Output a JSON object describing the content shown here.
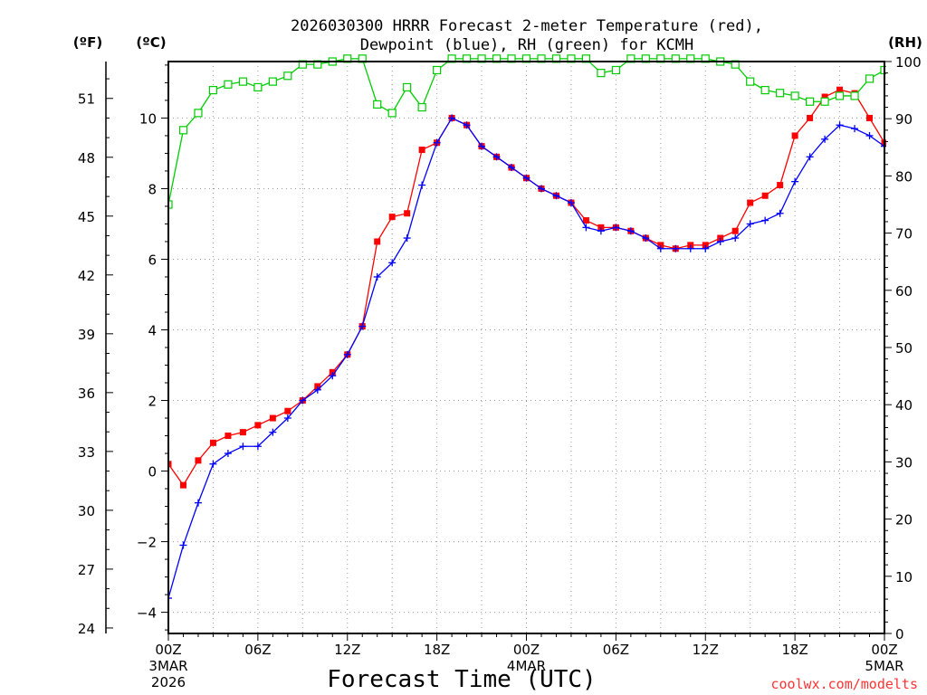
{
  "chart_data": {
    "type": "line",
    "title_line1": "2026030300 HRRR Forecast 2-meter Temperature (red),",
    "title_line2": "Dewpoint (blue), RH (green) for KCMH",
    "xlabel": "Forecast Time (UTC)",
    "credit": "coolwx.com/modelts",
    "left_outer_unit": "(ºF)",
    "left_inner_unit": "(ºC)",
    "right_unit": "(RH)",
    "x_range_hours": [
      0,
      48
    ],
    "y_celsius_range": [
      -4.6,
      11.6
    ],
    "y_rh_range": [
      0,
      100
    ],
    "celsius_ticks": [
      "-4",
      "-2",
      "0",
      "2",
      "4",
      "6",
      "8",
      "10"
    ],
    "fahrenheit_ticks": [
      "24",
      "27",
      "30",
      "33",
      "36",
      "39",
      "42",
      "45",
      "48",
      "51"
    ],
    "rh_ticks": [
      "0",
      "10",
      "20",
      "30",
      "40",
      "50",
      "60",
      "70",
      "80",
      "90",
      "100"
    ],
    "x_ticks": [
      {
        "h": 0,
        "l1": "00Z",
        "l2": "3MAR",
        "l3": "2026"
      },
      {
        "h": 6,
        "l1": "06Z",
        "l2": "",
        "l3": ""
      },
      {
        "h": 12,
        "l1": "12Z",
        "l2": "",
        "l3": ""
      },
      {
        "h": 18,
        "l1": "18Z",
        "l2": "",
        "l3": ""
      },
      {
        "h": 24,
        "l1": "00Z",
        "l2": "4MAR",
        "l3": ""
      },
      {
        "h": 30,
        "l1": "06Z",
        "l2": "",
        "l3": ""
      },
      {
        "h": 36,
        "l1": "12Z",
        "l2": "",
        "l3": ""
      },
      {
        "h": 42,
        "l1": "18Z",
        "l2": "",
        "l3": ""
      },
      {
        "h": 48,
        "l1": "00Z",
        "l2": "5MAR",
        "l3": ""
      }
    ],
    "grid": true,
    "series": [
      {
        "key": "temperature",
        "axis": "celsius",
        "color": "#ff0000",
        "marker": "square-filled",
        "values": [
          0.2,
          -0.4,
          0.3,
          0.8,
          1.0,
          1.1,
          1.3,
          1.5,
          1.7,
          2.0,
          2.4,
          2.8,
          3.3,
          4.1,
          6.5,
          7.2,
          7.3,
          9.1,
          9.3,
          10.0,
          9.8,
          9.2,
          8.9,
          8.6,
          8.3,
          8.0,
          7.8,
          7.6,
          7.1,
          6.9,
          6.9,
          6.8,
          6.6,
          6.4,
          6.3,
          6.4,
          6.4,
          6.6,
          6.8,
          7.6,
          7.8,
          8.1,
          9.5,
          10.0,
          10.6,
          10.8,
          10.7,
          10.0,
          9.3
        ]
      },
      {
        "key": "dewpoint",
        "axis": "celsius",
        "color": "#0000ff",
        "marker": "plus",
        "values": [
          -3.6,
          -2.1,
          -0.9,
          0.2,
          0.5,
          0.7,
          0.7,
          1.1,
          1.5,
          2.0,
          2.3,
          2.7,
          3.3,
          4.1,
          5.5,
          5.9,
          6.6,
          8.1,
          9.3,
          10.0,
          9.8,
          9.2,
          8.9,
          8.6,
          8.3,
          8.0,
          7.8,
          7.6,
          6.9,
          6.8,
          6.9,
          6.8,
          6.6,
          6.3,
          6.3,
          6.3,
          6.3,
          6.5,
          6.6,
          7.0,
          7.1,
          7.3,
          8.2,
          8.9,
          9.4,
          9.8,
          9.7,
          9.5,
          9.2
        ]
      },
      {
        "key": "rh",
        "axis": "rh",
        "color": "#00cc00",
        "marker": "square-open",
        "values": [
          75,
          88,
          91,
          95,
          96,
          96.5,
          95.5,
          96.5,
          97.5,
          99.5,
          99.5,
          100,
          100.5,
          100.5,
          92.5,
          91,
          95.5,
          92,
          98.5,
          100.5,
          100.5,
          100.5,
          100.5,
          100.5,
          100.5,
          100.5,
          100.5,
          100.5,
          100.5,
          98,
          98.5,
          100.5,
          100.5,
          100.5,
          100.5,
          100.5,
          100.5,
          100,
          99.5,
          96.5,
          95,
          94.5,
          94,
          93,
          93,
          94,
          94,
          97,
          98.5
        ]
      }
    ]
  }
}
